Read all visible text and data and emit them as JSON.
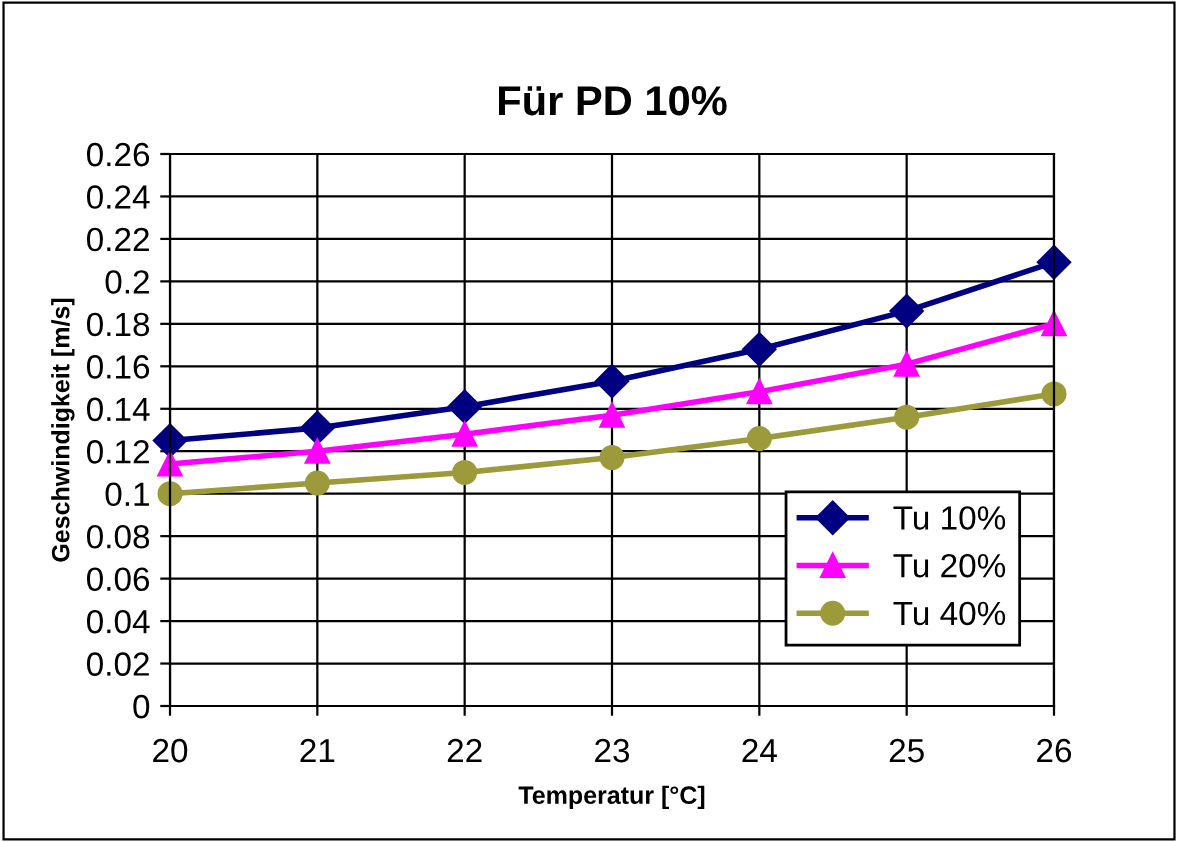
{
  "chart_data": {
    "type": "line",
    "title": "Für PD 10%",
    "xlabel": "Temperatur [°C]",
    "ylabel": "Geschwindigkeit [m/s]",
    "x": [
      20,
      21,
      22,
      23,
      24,
      25,
      26
    ],
    "series": [
      {
        "name": "Tu 10%",
        "color": "#000080",
        "marker": "diamond",
        "values": [
          0.125,
          0.131,
          0.141,
          0.153,
          0.168,
          0.186,
          0.209
        ]
      },
      {
        "name": "Tu 20%",
        "color": "#ff00ff",
        "marker": "triangle",
        "values": [
          0.114,
          0.12,
          0.128,
          0.137,
          0.148,
          0.161,
          0.18
        ]
      },
      {
        "name": "Tu 40%",
        "color": "#9c9a3a",
        "marker": "circle",
        "values": [
          0.1,
          0.105,
          0.11,
          0.117,
          0.126,
          0.136,
          0.147
        ]
      }
    ],
    "xlim": [
      20,
      26
    ],
    "xticks": [
      20,
      21,
      22,
      23,
      24,
      25,
      26
    ],
    "ylim": [
      0,
      0.26
    ],
    "yticks": [
      0,
      0.02,
      0.04,
      0.06,
      0.08,
      0.1,
      0.12,
      0.14,
      0.16,
      0.18,
      0.2,
      0.22,
      0.24,
      0.26
    ],
    "grid": true,
    "legend": "bottom right"
  }
}
